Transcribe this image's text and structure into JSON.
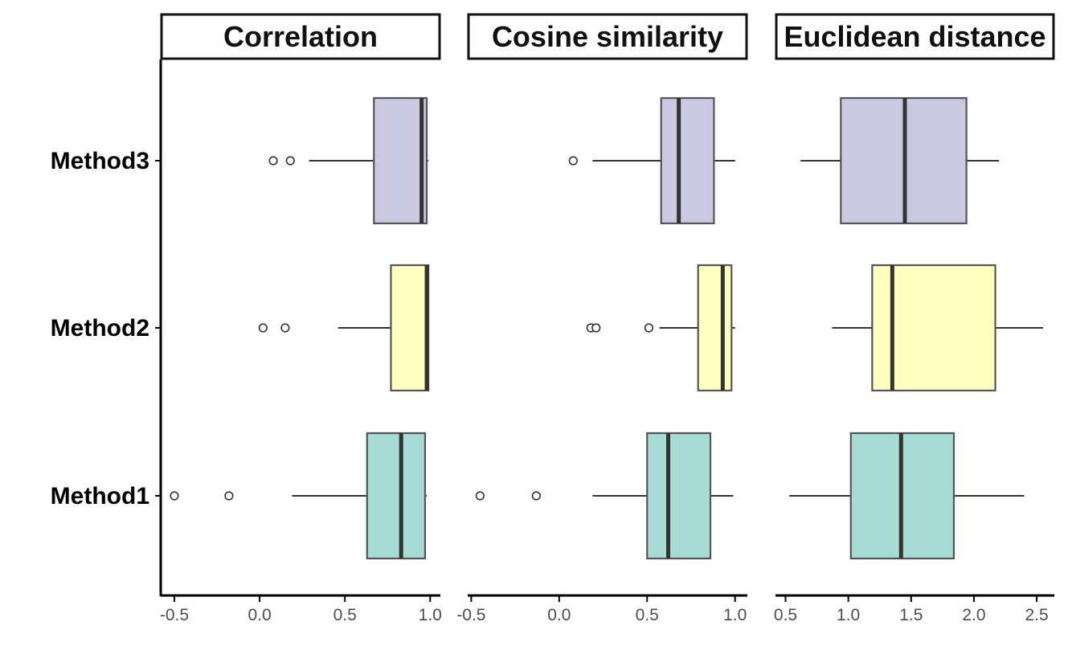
{
  "chart_data": {
    "type": "boxplot",
    "orientation": "horizontal",
    "categories": [
      "Method1",
      "Method2",
      "Method3"
    ],
    "colors": {
      "Method1": "#a6dcd3",
      "Method2": "#ffffc0",
      "Method3": "#cbc8e2",
      "box_border": "#555555",
      "median": "#333333",
      "axis": "#000000",
      "tick_text": "#4d4d4d",
      "category_text": "#000000",
      "strip_border": "#111111"
    },
    "facets": [
      {
        "title": "Correlation",
        "xlim": [
          -0.58,
          1.06
        ],
        "ticks": [
          -0.5,
          0.0,
          0.5,
          1.0
        ],
        "tick_labels": [
          "-0.5",
          "0.0",
          "0.5",
          "1.0"
        ],
        "boxes": {
          "Method1": {
            "min": 0.19,
            "q1": 0.63,
            "median": 0.83,
            "q3": 0.97,
            "max": 0.98,
            "outliers": [
              -0.5,
              -0.18
            ]
          },
          "Method2": {
            "min": 0.46,
            "q1": 0.77,
            "median": 0.98,
            "q3": 0.99,
            "max": 0.99,
            "outliers": [
              0.02,
              0.15
            ]
          },
          "Method3": {
            "min": 0.29,
            "q1": 0.67,
            "median": 0.95,
            "q3": 0.98,
            "max": 0.99,
            "outliers": [
              0.08,
              0.18
            ]
          }
        }
      },
      {
        "title": "Cosine similarity",
        "xlim": [
          -0.52,
          1.07
        ],
        "ticks": [
          -0.5,
          0.0,
          0.5,
          1.0
        ],
        "tick_labels": [
          "-0.5",
          "0.0",
          "0.5",
          "1.0"
        ],
        "boxes": {
          "Method1": {
            "min": 0.19,
            "q1": 0.5,
            "median": 0.62,
            "q3": 0.86,
            "max": 0.99,
            "outliers": [
              -0.45,
              -0.13
            ]
          },
          "Method2": {
            "min": 0.57,
            "q1": 0.79,
            "median": 0.93,
            "q3": 0.98,
            "max": 1.0,
            "outliers": [
              0.18,
              0.21,
              0.51
            ]
          },
          "Method3": {
            "min": 0.19,
            "q1": 0.58,
            "median": 0.68,
            "q3": 0.88,
            "max": 1.0,
            "outliers": [
              0.08
            ]
          }
        }
      },
      {
        "title": "Euclidean distance",
        "xlim": [
          0.42,
          2.64
        ],
        "ticks": [
          0.5,
          1.0,
          1.5,
          2.0,
          2.5
        ],
        "tick_labels": [
          "0.5",
          "1.0",
          "1.5",
          "2.0",
          "2.5"
        ],
        "boxes": {
          "Method1": {
            "min": 0.53,
            "q1": 1.02,
            "median": 1.42,
            "q3": 1.84,
            "max": 2.4,
            "outliers": []
          },
          "Method2": {
            "min": 0.87,
            "q1": 1.19,
            "median": 1.35,
            "q3": 2.17,
            "max": 2.55,
            "outliers": []
          },
          "Method3": {
            "min": 0.62,
            "q1": 0.94,
            "median": 1.45,
            "q3": 1.94,
            "max": 2.2,
            "outliers": []
          }
        }
      }
    ]
  }
}
